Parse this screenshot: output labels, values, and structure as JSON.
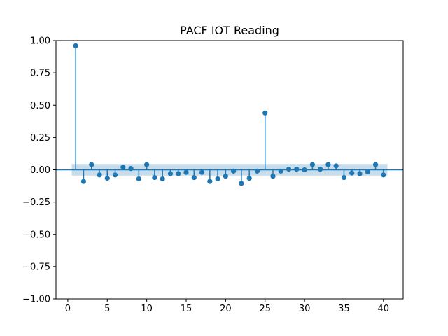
{
  "chart_data": {
    "type": "scatter",
    "style": "stem",
    "title": "PACF IOT Reading",
    "xlabel": "",
    "ylabel": "",
    "xlim": [
      -1.5,
      42.5
    ],
    "ylim": [
      -1.0,
      1.0
    ],
    "x_ticks": [
      0,
      5,
      10,
      15,
      20,
      25,
      30,
      35,
      40
    ],
    "y_ticks": [
      1.0,
      0.75,
      0.5,
      0.25,
      0.0,
      -0.25,
      -0.5,
      -0.75,
      -1.0
    ],
    "y_tick_labels": [
      "1.00",
      "0.75",
      "0.50",
      "0.25",
      "0.00",
      "−0.25",
      "−0.50",
      "−0.75",
      "−1.00"
    ],
    "confidence_band": {
      "lower": -0.045,
      "upper": 0.045,
      "x_start": 0.5,
      "x_end": 40.5
    },
    "grid": false,
    "colors": {
      "marker": "#1f77b4",
      "band": "#1f77b4",
      "zero_line": "#1f77b4"
    },
    "x": [
      1,
      2,
      3,
      4,
      5,
      6,
      7,
      8,
      9,
      10,
      11,
      12,
      13,
      14,
      15,
      16,
      17,
      18,
      19,
      20,
      21,
      22,
      23,
      24,
      25,
      26,
      27,
      28,
      29,
      30,
      31,
      32,
      33,
      34,
      35,
      36,
      37,
      38,
      39,
      40
    ],
    "values": [
      0.96,
      -0.09,
      0.04,
      -0.04,
      -0.065,
      -0.04,
      0.02,
      0.01,
      -0.07,
      0.04,
      -0.06,
      -0.07,
      -0.03,
      -0.03,
      -0.02,
      -0.06,
      -0.02,
      -0.09,
      -0.07,
      -0.05,
      -0.01,
      -0.105,
      -0.065,
      -0.01,
      0.44,
      -0.05,
      -0.01,
      0.005,
      0.005,
      0.0,
      0.04,
      0.005,
      0.04,
      0.03,
      -0.06,
      -0.025,
      -0.03,
      -0.015,
      0.04,
      -0.04
    ]
  }
}
